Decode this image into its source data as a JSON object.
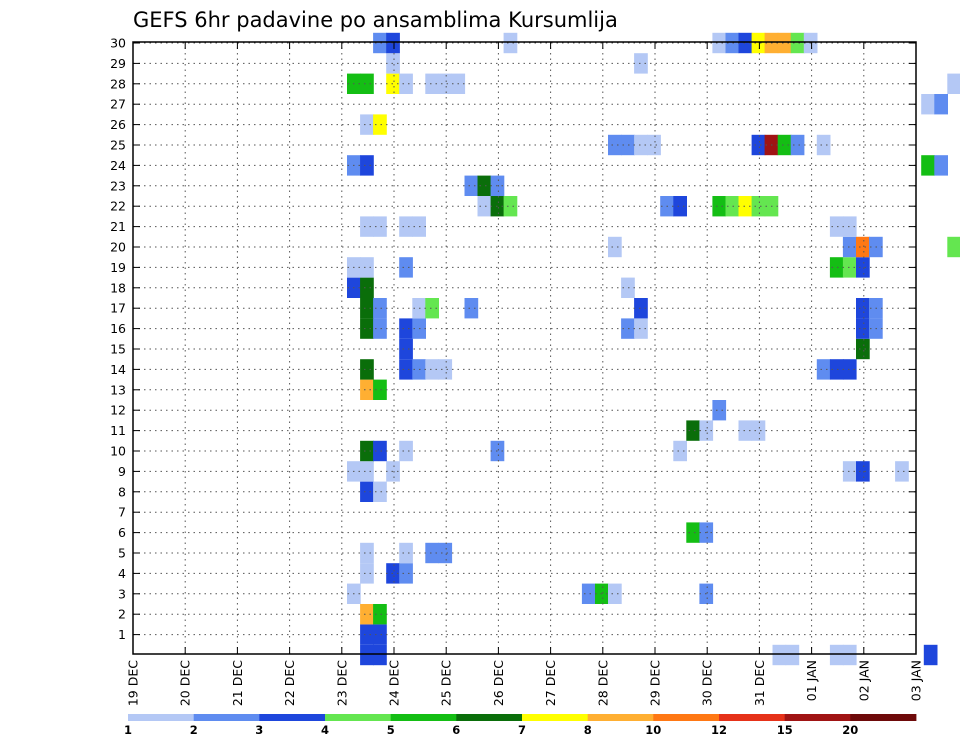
{
  "chart_data": {
    "type": "heatmap",
    "title": "GEFS 6hr padavine po ansamblima Kursumlija",
    "x_labels": [
      "19 DEC",
      "20 DEC",
      "21 DEC",
      "22 DEC",
      "23 DEC",
      "24 DEC",
      "25 DEC",
      "26 DEC",
      "27 DEC",
      "28 DEC",
      "29 DEC",
      "30 DEC",
      "31 DEC",
      "01 JAN",
      "02 JAN",
      "03 JAN"
    ],
    "y_labels": [
      "1",
      "2",
      "3",
      "4",
      "5",
      "6",
      "7",
      "8",
      "9",
      "10",
      "11",
      "12",
      "13",
      "14",
      "15",
      "16",
      "17",
      "18",
      "19",
      "20",
      "21",
      "22",
      "23",
      "24",
      "25",
      "26",
      "27",
      "28",
      "29",
      "30"
    ],
    "grid": true,
    "colorbar": {
      "labels": [
        "1",
        "2",
        "3",
        "4",
        "5",
        "6",
        "7",
        "8",
        "10",
        "12",
        "15",
        "20"
      ],
      "colors": [
        "#b4c8f5",
        "#5f8cf0",
        "#1e46dc",
        "#64e650",
        "#14be14",
        "#0a6e0a",
        "#ffff00",
        "#ffaf32",
        "#ff7814",
        "#e63219",
        "#a01414",
        "#6e0a0a"
      ]
    },
    "cells": [
      [
        0,
        4.35,
        2
      ],
      [
        0,
        4.6,
        2
      ],
      [
        0,
        12.25,
        0
      ],
      [
        0,
        12.5,
        0
      ],
      [
        0,
        13.35,
        0
      ],
      [
        0,
        13.6,
        0
      ],
      [
        0,
        15.15,
        2
      ],
      [
        1,
        4.35,
        2
      ],
      [
        1,
        4.6,
        2
      ],
      [
        2,
        4.35,
        7
      ],
      [
        2,
        4.6,
        4
      ],
      [
        3,
        4.1,
        0
      ],
      [
        3,
        8.6,
        1
      ],
      [
        3,
        8.85,
        4
      ],
      [
        3,
        9.1,
        0
      ],
      [
        3,
        10.85,
        1
      ],
      [
        4,
        4.35,
        0
      ],
      [
        4,
        4.85,
        2
      ],
      [
        4,
        5.1,
        1
      ],
      [
        5,
        4.35,
        0
      ],
      [
        5,
        5.1,
        0
      ],
      [
        5,
        5.6,
        1
      ],
      [
        5,
        5.85,
        1
      ],
      [
        6,
        10.6,
        4
      ],
      [
        6,
        10.85,
        1
      ],
      [
        8,
        4.35,
        2
      ],
      [
        8,
        4.6,
        0
      ],
      [
        9,
        4.1,
        0
      ],
      [
        9,
        4.35,
        0
      ],
      [
        9,
        4.85,
        0
      ],
      [
        9,
        13.6,
        0
      ],
      [
        9,
        13.85,
        2
      ],
      [
        9,
        14.6,
        0
      ],
      [
        9,
        15.9,
        0
      ],
      [
        10,
        4.35,
        5
      ],
      [
        10,
        4.6,
        2
      ],
      [
        10,
        5.1,
        0
      ],
      [
        10,
        6.85,
        1
      ],
      [
        10,
        10.35,
        0
      ],
      [
        11,
        10.6,
        5
      ],
      [
        11,
        10.85,
        0
      ],
      [
        11,
        11.6,
        0
      ],
      [
        11,
        11.85,
        0
      ],
      [
        12,
        11.1,
        1
      ],
      [
        13,
        4.35,
        7
      ],
      [
        13,
        4.6,
        4
      ],
      [
        14,
        4.35,
        5
      ],
      [
        14,
        5.1,
        2
      ],
      [
        14,
        5.35,
        1
      ],
      [
        14,
        5.6,
        0
      ],
      [
        14,
        5.85,
        0
      ],
      [
        14,
        13.1,
        1
      ],
      [
        14,
        13.35,
        2
      ],
      [
        14,
        13.6,
        2
      ],
      [
        15,
        5.1,
        2
      ],
      [
        15,
        13.85,
        5
      ],
      [
        16,
        4.35,
        5
      ],
      [
        16,
        4.6,
        1
      ],
      [
        16,
        5.1,
        2
      ],
      [
        16,
        5.35,
        1
      ],
      [
        16,
        9.35,
        1
      ],
      [
        16,
        9.6,
        0
      ],
      [
        16,
        13.85,
        2
      ],
      [
        16,
        14.1,
        1
      ],
      [
        17,
        4.35,
        5
      ],
      [
        17,
        4.6,
        1
      ],
      [
        17,
        5.35,
        0
      ],
      [
        17,
        5.6,
        3
      ],
      [
        17,
        6.35,
        1
      ],
      [
        17,
        9.6,
        2
      ],
      [
        17,
        13.85,
        2
      ],
      [
        17,
        14.1,
        1
      ],
      [
        18,
        4.1,
        2
      ],
      [
        18,
        4.35,
        5
      ],
      [
        18,
        9.35,
        0
      ],
      [
        19,
        4.1,
        0
      ],
      [
        19,
        4.35,
        0
      ],
      [
        19,
        5.1,
        1
      ],
      [
        19,
        13.35,
        4
      ],
      [
        19,
        13.6,
        3
      ],
      [
        19,
        13.85,
        2
      ],
      [
        20,
        9.1,
        0
      ],
      [
        20,
        13.6,
        1
      ],
      [
        20,
        13.85,
        8
      ],
      [
        20,
        14.1,
        1
      ],
      [
        20,
        15.6,
        3
      ],
      [
        21,
        4.35,
        0
      ],
      [
        21,
        4.6,
        0
      ],
      [
        21,
        5.1,
        0
      ],
      [
        21,
        5.35,
        0
      ],
      [
        21,
        13.35,
        0
      ],
      [
        21,
        13.6,
        0
      ],
      [
        22,
        6.6,
        0
      ],
      [
        22,
        6.85,
        5
      ],
      [
        22,
        7.1,
        3
      ],
      [
        22,
        10.1,
        1
      ],
      [
        22,
        10.35,
        2
      ],
      [
        22,
        11.1,
        4
      ],
      [
        22,
        11.35,
        3
      ],
      [
        22,
        11.6,
        6
      ],
      [
        22,
        11.85,
        3
      ],
      [
        22,
        12.1,
        3
      ],
      [
        23,
        6.35,
        1
      ],
      [
        23,
        6.6,
        5
      ],
      [
        23,
        6.85,
        1
      ],
      [
        24,
        4.1,
        1
      ],
      [
        24,
        4.35,
        2
      ],
      [
        24,
        15.1,
        4
      ],
      [
        24,
        15.35,
        1
      ],
      [
        25,
        9.1,
        1
      ],
      [
        25,
        9.35,
        1
      ],
      [
        25,
        9.6,
        0
      ],
      [
        25,
        9.85,
        0
      ],
      [
        25,
        11.85,
        2
      ],
      [
        25,
        12.1,
        10
      ],
      [
        25,
        12.35,
        4
      ],
      [
        25,
        12.6,
        1
      ],
      [
        25,
        13.1,
        0
      ],
      [
        26,
        4.35,
        0
      ],
      [
        26,
        4.6,
        6
      ],
      [
        26,
        15.85,
        3
      ],
      [
        27,
        15.1,
        0
      ],
      [
        27,
        15.35,
        1
      ],
      [
        28,
        4.1,
        4
      ],
      [
        28,
        4.35,
        4
      ],
      [
        28,
        4.85,
        6
      ],
      [
        28,
        5.1,
        0
      ],
      [
        28,
        5.6,
        0
      ],
      [
        28,
        5.85,
        0
      ],
      [
        28,
        6.1,
        0
      ],
      [
        28,
        15.6,
        0
      ],
      [
        28,
        15.85,
        0
      ],
      [
        29,
        4.85,
        0
      ],
      [
        29,
        9.6,
        0
      ],
      [
        30,
        4.6,
        1
      ],
      [
        30,
        4.85,
        2
      ],
      [
        30,
        7.1,
        0
      ],
      [
        30,
        11.1,
        0
      ],
      [
        30,
        11.35,
        1
      ],
      [
        30,
        11.6,
        2
      ],
      [
        30,
        11.85,
        6
      ],
      [
        30,
        12.1,
        7
      ],
      [
        30,
        12.35,
        7
      ],
      [
        30,
        12.6,
        3
      ],
      [
        30,
        12.85,
        0
      ]
    ]
  }
}
